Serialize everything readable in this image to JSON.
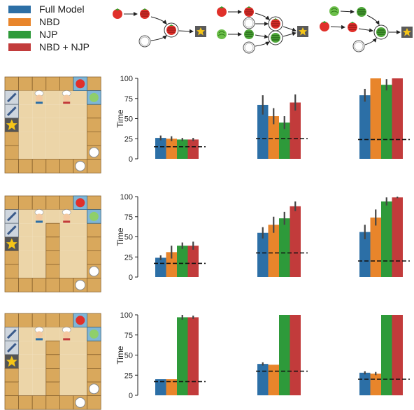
{
  "legend": [
    {
      "label": "Full Model",
      "color": "#2c6fa6"
    },
    {
      "label": "NBD",
      "color": "#e8852b"
    },
    {
      "label": "NJP",
      "color": "#2e9a3a"
    },
    {
      "label": "NBD + NJP",
      "color": "#c23b3b"
    }
  ],
  "icons": {
    "tomato": "tomato-icon",
    "chopped": "chopped-tomato-icon",
    "lettuce": "lettuce-icon",
    "chopped_lettuce": "chopped-lettuce-icon",
    "plate": "plate-icon",
    "star": "star-icon",
    "chef": "chef-icon",
    "knife": "knife-icon"
  },
  "chart_data": [
    {
      "type": "bar",
      "row": 1,
      "recipe": 1,
      "ylabel": "Time",
      "ylim": [
        0,
        100
      ],
      "yticks": [
        0,
        25,
        50,
        75,
        100
      ],
      "series": [
        {
          "name": "Full Model",
          "values": [
            26
          ]
        },
        {
          "name": "NBD",
          "values": [
            25
          ]
        },
        {
          "name": "NJP",
          "values": [
            24
          ]
        },
        {
          "name": "NBD + NJP",
          "values": [
            24
          ]
        }
      ],
      "errors": [
        3,
        3,
        2,
        2
      ],
      "baseline": 15
    },
    {
      "type": "bar",
      "row": 1,
      "recipe": 2,
      "ylim": [
        0,
        100
      ],
      "series": [
        {
          "name": "Full Model",
          "values": [
            67
          ]
        },
        {
          "name": "NBD",
          "values": [
            53
          ]
        },
        {
          "name": "NJP",
          "values": [
            45
          ]
        },
        {
          "name": "NBD + NJP",
          "values": [
            70
          ]
        }
      ],
      "errors": [
        12,
        10,
        8,
        10
      ],
      "baseline": 25
    },
    {
      "type": "bar",
      "row": 1,
      "recipe": 3,
      "ylim": [
        0,
        100
      ],
      "series": [
        {
          "name": "Full Model",
          "values": [
            79
          ]
        },
        {
          "name": "NBD",
          "values": [
            100
          ]
        },
        {
          "name": "NJP",
          "values": [
            92
          ]
        },
        {
          "name": "NBD + NJP",
          "values": [
            100
          ]
        }
      ],
      "errors": [
        8,
        0,
        7,
        0
      ],
      "baseline": 24
    },
    {
      "type": "bar",
      "row": 2,
      "recipe": 1,
      "ylabel": "Time",
      "ylim": [
        0,
        100
      ],
      "yticks": [
        0,
        25,
        50,
        75,
        100
      ],
      "series": [
        {
          "name": "Full Model",
          "values": [
            24
          ]
        },
        {
          "name": "NBD",
          "values": [
            31
          ]
        },
        {
          "name": "NJP",
          "values": [
            39
          ]
        },
        {
          "name": "NBD + NJP",
          "values": [
            39
          ]
        }
      ],
      "errors": [
        3,
        8,
        4,
        5
      ],
      "baseline": 17
    },
    {
      "type": "bar",
      "row": 2,
      "recipe": 2,
      "ylim": [
        0,
        100
      ],
      "series": [
        {
          "name": "Full Model",
          "values": [
            55
          ]
        },
        {
          "name": "NBD",
          "values": [
            65
          ]
        },
        {
          "name": "NJP",
          "values": [
            73
          ]
        },
        {
          "name": "NBD + NJP",
          "values": [
            88
          ]
        }
      ],
      "errors": [
        7,
        10,
        8,
        6
      ],
      "baseline": 30
    },
    {
      "type": "bar",
      "row": 2,
      "recipe": 3,
      "ylim": [
        0,
        100
      ],
      "series": [
        {
          "name": "Full Model",
          "values": [
            56
          ]
        },
        {
          "name": "NBD",
          "values": [
            74
          ]
        },
        {
          "name": "NJP",
          "values": [
            94
          ]
        },
        {
          "name": "NBD + NJP",
          "values": [
            99
          ]
        }
      ],
      "errors": [
        9,
        10,
        5,
        1
      ],
      "baseline": 20
    },
    {
      "type": "bar",
      "row": 3,
      "recipe": 1,
      "ylabel": "Time",
      "ylim": [
        0,
        100
      ],
      "yticks": [
        0,
        25,
        50,
        75,
        100
      ],
      "series": [
        {
          "name": "Full Model",
          "values": [
            20
          ]
        },
        {
          "name": "NBD",
          "values": [
            20
          ]
        },
        {
          "name": "NJP",
          "values": [
            97
          ]
        },
        {
          "name": "NBD + NJP",
          "values": [
            97
          ]
        }
      ],
      "errors": [
        0,
        0,
        3,
        2
      ],
      "baseline": 17
    },
    {
      "type": "bar",
      "row": 3,
      "recipe": 2,
      "ylim": [
        0,
        100
      ],
      "series": [
        {
          "name": "Full Model",
          "values": [
            39
          ]
        },
        {
          "name": "NBD",
          "values": [
            38
          ]
        },
        {
          "name": "NJP",
          "values": [
            100
          ]
        },
        {
          "name": "NBD + NJP",
          "values": [
            100
          ]
        }
      ],
      "errors": [
        2,
        0,
        0,
        0
      ],
      "baseline": 30
    },
    {
      "type": "bar",
      "row": 3,
      "recipe": 3,
      "ylim": [
        0,
        100
      ],
      "series": [
        {
          "name": "Full Model",
          "values": [
            28
          ]
        },
        {
          "name": "NBD",
          "values": [
            27
          ]
        },
        {
          "name": "NJP",
          "values": [
            100
          ]
        },
        {
          "name": "NBD + NJP",
          "values": [
            100
          ]
        }
      ],
      "errors": [
        2,
        2,
        0,
        0
      ],
      "baseline": 20
    }
  ]
}
